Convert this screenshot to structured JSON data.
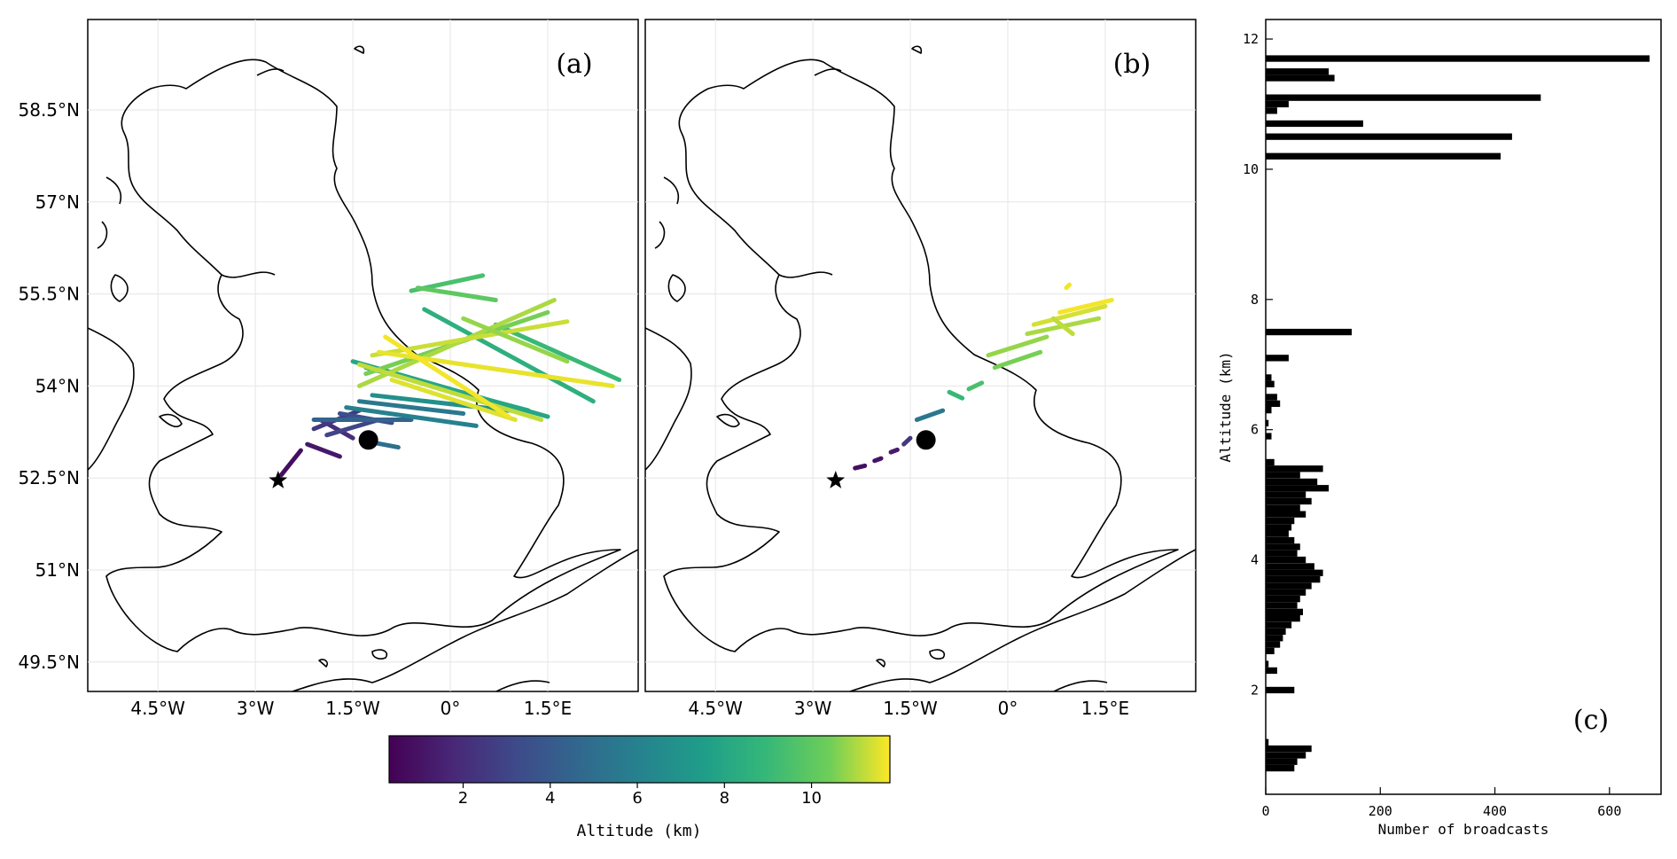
{
  "colors": {
    "colormap": "viridis",
    "bars": "#000000",
    "marker": "#000000"
  },
  "maps": {
    "panels": [
      "(a)",
      "(b)"
    ],
    "lat_ticks": [
      "58.5°N",
      "57°N",
      "55.5°N",
      "54°N",
      "52.5°N",
      "51°N",
      "49.5°N"
    ],
    "lon_ticks": [
      "4.5°W",
      "3°W",
      "1.5°W",
      "0°",
      "1.5°E"
    ],
    "markers": [
      {
        "type": "star",
        "name": "star-marker",
        "lon": -2.65,
        "lat": 52.46
      },
      {
        "type": "circle",
        "name": "circle-marker",
        "lon": -1.26,
        "lat": 53.12
      }
    ]
  },
  "colorbar": {
    "label": "Altitude (km)",
    "ticks": [
      "2",
      "4",
      "6",
      "8",
      "10"
    ],
    "range": [
      0.3,
      11.8
    ]
  },
  "chart_data": [
    {
      "type": "line",
      "panel": "(a)",
      "x_unit": "degrees longitude",
      "y_unit": "degrees latitude",
      "color_value": "Altitude (km)",
      "series": [
        {
          "x": [
            -2.6,
            -2.3
          ],
          "y": [
            52.55,
            52.95
          ],
          "z": 0.8
        },
        {
          "x": [
            -2.2,
            -1.7
          ],
          "y": [
            53.05,
            52.85
          ],
          "z": 1.2
        },
        {
          "x": [
            -2.0,
            -1.5
          ],
          "y": [
            53.45,
            53.15
          ],
          "z": 2.0
        },
        {
          "x": [
            -2.1,
            -1.4
          ],
          "y": [
            53.3,
            53.6
          ],
          "z": 2.5
        },
        {
          "x": [
            -1.9,
            -1.1
          ],
          "y": [
            53.2,
            53.45
          ],
          "z": 3.0
        },
        {
          "x": [
            -1.7,
            -0.9
          ],
          "y": [
            53.55,
            53.4
          ],
          "z": 3.5
        },
        {
          "x": [
            -2.1,
            -0.6
          ],
          "y": [
            53.45,
            53.45
          ],
          "z": 4.5
        },
        {
          "x": [
            -1.3,
            -0.8
          ],
          "y": [
            53.1,
            53.0
          ],
          "z": 5.0
        },
        {
          "x": [
            -1.4,
            0.2
          ],
          "y": [
            53.75,
            53.55
          ],
          "z": 5.5
        },
        {
          "x": [
            -1.6,
            0.4
          ],
          "y": [
            53.65,
            53.35
          ],
          "z": 6.0
        },
        {
          "x": [
            -1.2,
            0.9
          ],
          "y": [
            53.85,
            53.6
          ],
          "z": 6.8
        },
        {
          "x": [
            -1.3,
            1.2
          ],
          "y": [
            54.3,
            53.6
          ],
          "z": 7.5
        },
        {
          "x": [
            -1.5,
            1.5
          ],
          "y": [
            54.4,
            53.5
          ],
          "z": 8.0
        },
        {
          "x": [
            -0.4,
            2.2
          ],
          "y": [
            55.25,
            53.75
          ],
          "z": 8.5
        },
        {
          "x": [
            0.7,
            2.6
          ],
          "y": [
            55.0,
            54.1
          ],
          "z": 9.0
        },
        {
          "x": [
            -0.6,
            0.5
          ],
          "y": [
            55.55,
            55.8
          ],
          "z": 9.5
        },
        {
          "x": [
            -0.5,
            0.7
          ],
          "y": [
            55.6,
            55.4
          ],
          "z": 10.0
        },
        {
          "x": [
            -1.3,
            1.5
          ],
          "y": [
            54.2,
            55.2
          ],
          "z": 10.5
        },
        {
          "x": [
            -1.4,
            1.6
          ],
          "y": [
            54.0,
            55.4
          ],
          "z": 11.0
        },
        {
          "x": [
            -1.2,
            1.8
          ],
          "y": [
            54.5,
            55.05
          ],
          "z": 11.3
        },
        {
          "x": [
            -0.9,
            1.0
          ],
          "y": [
            54.1,
            53.45
          ],
          "z": 11.5
        },
        {
          "x": [
            -1.1,
            2.5
          ],
          "y": [
            54.55,
            54.0
          ],
          "z": 11.6
        },
        {
          "x": [
            -1.4,
            1.4
          ],
          "y": [
            54.35,
            53.45
          ],
          "z": 11.2
        },
        {
          "x": [
            -1.0,
            0.9
          ],
          "y": [
            54.8,
            53.5
          ],
          "z": 11.7
        },
        {
          "x": [
            0.2,
            1.8
          ],
          "y": [
            55.1,
            54.4
          ],
          "z": 10.8
        }
      ]
    },
    {
      "type": "line",
      "panel": "(b)",
      "x_unit": "degrees longitude",
      "y_unit": "degrees latitude",
      "color_value": "Altitude (km)",
      "series": [
        {
          "x": [
            -2.35,
            -2.2
          ],
          "y": [
            52.66,
            52.7
          ],
          "z": 0.8
        },
        {
          "x": [
            -2.05,
            -1.95
          ],
          "y": [
            52.78,
            52.82
          ],
          "z": 1.0
        },
        {
          "x": [
            -1.8,
            -1.7
          ],
          "y": [
            52.92,
            52.96
          ],
          "z": 1.3
        },
        {
          "x": [
            -1.6,
            -1.5
          ],
          "y": [
            53.05,
            53.15
          ],
          "z": 2.5
        },
        {
          "x": [
            -1.4,
            -1.0
          ],
          "y": [
            53.45,
            53.6
          ],
          "z": 5.5
        },
        {
          "x": [
            -0.9,
            -0.7
          ],
          "y": [
            53.9,
            53.8
          ],
          "z": 9.0
        },
        {
          "x": [
            -0.6,
            -0.4
          ],
          "y": [
            53.95,
            54.05
          ],
          "z": 9.5
        },
        {
          "x": [
            -0.2,
            0.5
          ],
          "y": [
            54.3,
            54.55
          ],
          "z": 10.5
        },
        {
          "x": [
            -0.3,
            0.6
          ],
          "y": [
            54.5,
            54.8
          ],
          "z": 10.8
        },
        {
          "x": [
            0.3,
            1.4
          ],
          "y": [
            54.85,
            55.1
          ],
          "z": 11.0
        },
        {
          "x": [
            0.4,
            1.5
          ],
          "y": [
            55.0,
            55.3
          ],
          "z": 11.4
        },
        {
          "x": [
            0.8,
            1.6
          ],
          "y": [
            55.2,
            55.4
          ],
          "z": 11.7
        },
        {
          "x": [
            0.9,
            0.95
          ],
          "y": [
            55.6,
            55.65
          ],
          "z": 11.7
        },
        {
          "x": [
            0.7,
            1.0
          ],
          "y": [
            55.1,
            54.85
          ],
          "z": 11.2
        }
      ]
    },
    {
      "type": "bar",
      "panel": "(c)",
      "orientation": "horizontal",
      "title": "",
      "xlabel": "Number of broadcasts",
      "ylabel": "Altitude (km)",
      "xlim": [
        0,
        690
      ],
      "ylim": [
        0.4,
        12.3
      ],
      "xticks": [
        "0",
        "200",
        "400",
        "600"
      ],
      "yticks": [
        "2",
        "4",
        "6",
        "8",
        "10",
        "12"
      ],
      "bin_width_km": 0.1,
      "altitudes": [
        11.7,
        11.5,
        11.4,
        11.1,
        11.0,
        10.9,
        10.7,
        10.5,
        10.2,
        7.5,
        7.1,
        6.8,
        6.7,
        6.5,
        6.4,
        6.3,
        6.1,
        5.9,
        5.5,
        5.4,
        5.3,
        5.2,
        5.1,
        5.0,
        4.9,
        4.8,
        4.7,
        4.6,
        4.5,
        4.4,
        4.3,
        4.2,
        4.1,
        4.0,
        3.9,
        3.8,
        3.7,
        3.6,
        3.5,
        3.4,
        3.3,
        3.2,
        3.1,
        3.0,
        2.9,
        2.8,
        2.7,
        2.6,
        2.4,
        2.3,
        2.0,
        1.2,
        1.1,
        1.0,
        0.9,
        0.8
      ],
      "values": [
        670,
        110,
        120,
        480,
        40,
        20,
        170,
        430,
        410,
        150,
        40,
        10,
        15,
        20,
        25,
        10,
        5,
        10,
        15,
        100,
        60,
        90,
        110,
        70,
        80,
        60,
        70,
        50,
        45,
        40,
        50,
        60,
        55,
        70,
        85,
        100,
        95,
        80,
        70,
        60,
        55,
        65,
        60,
        45,
        35,
        30,
        25,
        15,
        5,
        20,
        50,
        5,
        80,
        70,
        55,
        50
      ]
    }
  ]
}
